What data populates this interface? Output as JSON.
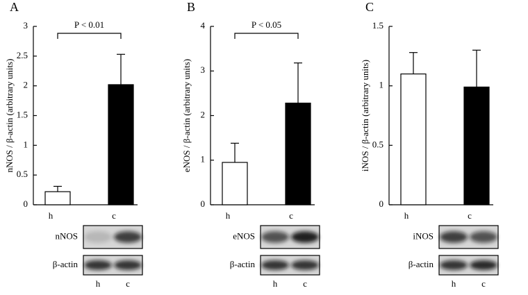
{
  "chart_data": [
    {
      "type": "bar",
      "panel": "A",
      "y_label": "nNOS / β-actin (arbitrary units)",
      "categories": [
        "h",
        "c"
      ],
      "values": [
        0.22,
        2.02
      ],
      "errors": [
        0.09,
        0.51
      ],
      "colors": [
        "#ffffff",
        "#000000"
      ],
      "ylim": [
        0,
        3
      ],
      "yticks": [
        0,
        0.5,
        1,
        1.5,
        2,
        2.5,
        3
      ],
      "significance": "P < 0.01",
      "blots": [
        "nNOS",
        "β-actin"
      ],
      "blot_lanes": [
        "h",
        "c"
      ]
    },
    {
      "type": "bar",
      "panel": "B",
      "y_label": "eNOS / β-actin (arbitrary units)",
      "categories": [
        "h",
        "c"
      ],
      "values": [
        0.95,
        2.28
      ],
      "errors": [
        0.43,
        0.9
      ],
      "colors": [
        "#ffffff",
        "#000000"
      ],
      "ylim": [
        0,
        4
      ],
      "yticks": [
        0,
        1,
        2,
        3,
        4
      ],
      "significance": "P < 0.05",
      "blots": [
        "eNOS",
        "β-actin"
      ],
      "blot_lanes": [
        "h",
        "c"
      ]
    },
    {
      "type": "bar",
      "panel": "C",
      "y_label": "iNOS / β-actin (arbitrary units)",
      "categories": [
        "h",
        "c"
      ],
      "values": [
        1.1,
        0.99
      ],
      "errors": [
        0.18,
        0.31
      ],
      "colors": [
        "#ffffff",
        "#000000"
      ],
      "ylim": [
        0,
        1.5
      ],
      "yticks": [
        0,
        0.5,
        1,
        1.5
      ],
      "blots": [
        "iNOS",
        "β-actin"
      ],
      "blot_lanes": [
        "h",
        "c"
      ]
    }
  ]
}
